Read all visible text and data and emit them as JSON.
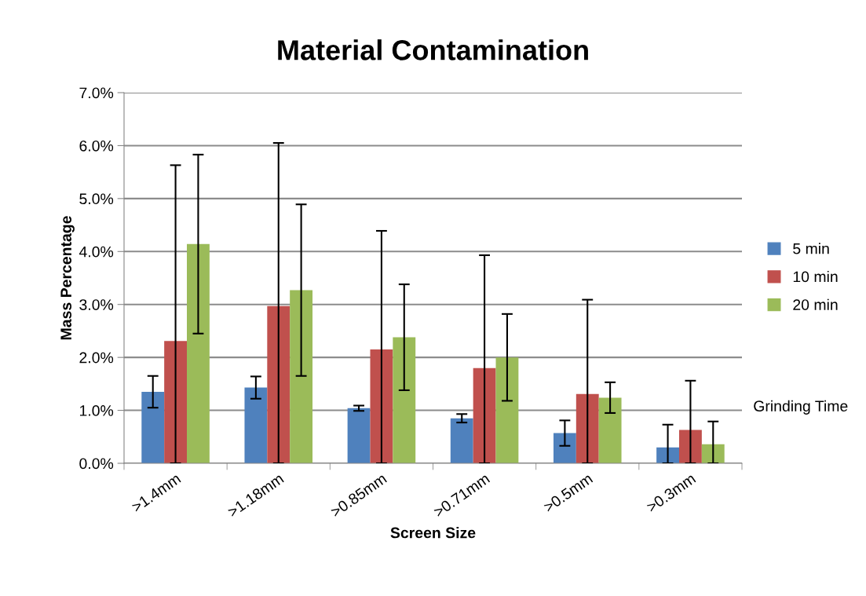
{
  "chart_data": {
    "type": "bar",
    "title": "Material Contamination",
    "xlabel": "Screen Size",
    "ylabel": "Mass Percentage",
    "legend_title": "Grinding Time",
    "categories": [
      ">1.4mm",
      ">1.18mm",
      ">0.85mm",
      ">0.71mm",
      ">0.5mm",
      ">0.3mm"
    ],
    "series": [
      {
        "name": "5 min",
        "color": "#4f81bd",
        "values": [
          1.35,
          1.43,
          1.04,
          0.85,
          0.57,
          0.3
        ],
        "errors": [
          0.3,
          0.21,
          0.05,
          0.08,
          0.24,
          [
            0,
            0.73
          ]
        ]
      },
      {
        "name": "10 min",
        "color": "#c0504d",
        "values": [
          2.31,
          2.97,
          2.15,
          1.8,
          1.31,
          0.63
        ],
        "errors": [
          [
            0,
            5.63
          ],
          [
            0,
            6.05
          ],
          [
            0,
            4.39
          ],
          [
            0,
            3.93
          ],
          [
            0,
            3.09
          ],
          [
            0,
            1.56
          ]
        ]
      },
      {
        "name": "20 min",
        "color": "#9bbb59",
        "values": [
          4.14,
          3.27,
          2.38,
          2.0,
          1.24,
          0.36
        ],
        "errors": [
          1.69,
          1.62,
          1.0,
          0.82,
          0.29,
          [
            0,
            0.79
          ]
        ]
      }
    ],
    "ylim": [
      0,
      7
    ],
    "yticks": [
      {
        "value": 0,
        "label": "0.0%"
      },
      {
        "value": 1,
        "label": "1.0%"
      },
      {
        "value": 2,
        "label": "2.0%"
      },
      {
        "value": 3,
        "label": "3.0%"
      },
      {
        "value": 4,
        "label": "4.0%"
      },
      {
        "value": 5,
        "label": "5.0%"
      },
      {
        "value": 6,
        "label": "6.0%"
      },
      {
        "value": 7,
        "label": "7.0%"
      }
    ],
    "grid": "y",
    "legend": "right"
  }
}
